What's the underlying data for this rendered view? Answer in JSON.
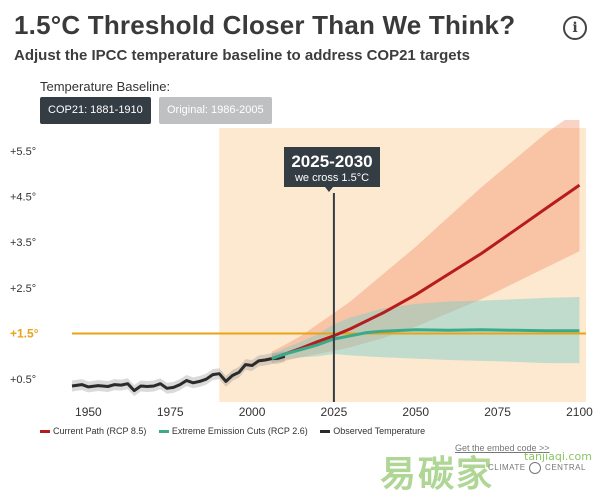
{
  "header": {
    "title": "1.5°C Threshold Closer Than We Think?",
    "subtitle": "Adjust the IPCC temperature baseline to address COP21 targets",
    "info_icon": "info-icon"
  },
  "baseline": {
    "label": "Temperature Baseline:",
    "options": [
      "COP21: 1881-1910",
      "Original: 1986-2005"
    ],
    "selected": "COP21: 1881-1910"
  },
  "annotation": {
    "headline": "2025-2030",
    "sub": "we cross 1.5°C"
  },
  "legend": {
    "items": [
      {
        "label": "Current Path (RCP 8.5)",
        "color": "#b71c1c"
      },
      {
        "label": "Extreme Emission Cuts (RCP 2.6)",
        "color": "#3aaa8a"
      },
      {
        "label": "Observed Temperature",
        "color": "#2b2b2b"
      }
    ]
  },
  "footer": {
    "embed": "Get the embed code >>",
    "brand_left": "CLIMATE",
    "brand_right": "CENTRAL"
  },
  "watermark": {
    "text": "易碳家",
    "url": "tanjiaqi.com"
  },
  "colors": {
    "threshold": "#e8a317",
    "rcp85": "#b71c1c",
    "rcp26": "#3aaa8a",
    "observed": "#2b2b2b",
    "band_bg": "#fde9cf"
  },
  "chart_data": {
    "type": "line",
    "xlim": [
      1945,
      2102
    ],
    "ylim": [
      0,
      6
    ],
    "x_ticks": [
      1950,
      1975,
      2000,
      2025,
      2050,
      2075,
      2100
    ],
    "y_ticks": [
      {
        "value": 0.5,
        "label": "+0.5°"
      },
      {
        "value": 1.5,
        "label": "+1.5°"
      },
      {
        "value": 2.5,
        "label": "+2.5°"
      },
      {
        "value": 3.5,
        "label": "+3.5°"
      },
      {
        "value": 4.5,
        "label": "+4.5°"
      },
      {
        "value": 5.5,
        "label": "+5.5°"
      }
    ],
    "threshold": 1.5,
    "marker_x": 2025,
    "series": [
      {
        "name": "Observed Temperature",
        "x": [
          1945,
          1948,
          1950,
          1953,
          1956,
          1958,
          1960,
          1962,
          1964,
          1966,
          1968,
          1970,
          1972,
          1974,
          1976,
          1978,
          1980,
          1982,
          1984,
          1986,
          1988,
          1990,
          1992,
          1994,
          1996,
          1998,
          2000,
          2002,
          2004,
          2006,
          2008,
          2010
        ],
        "y": [
          0.35,
          0.38,
          0.33,
          0.36,
          0.34,
          0.38,
          0.37,
          0.4,
          0.25,
          0.35,
          0.34,
          0.35,
          0.4,
          0.3,
          0.32,
          0.38,
          0.47,
          0.42,
          0.45,
          0.5,
          0.6,
          0.62,
          0.45,
          0.58,
          0.65,
          0.82,
          0.8,
          0.9,
          0.92,
          0.95,
          0.96,
          1.0
        ]
      },
      {
        "name": "Current Path (RCP 8.5)",
        "x": [
          2006,
          2010,
          2015,
          2020,
          2025,
          2030,
          2040,
          2050,
          2060,
          2070,
          2080,
          2090,
          2100
        ],
        "y": [
          0.95,
          1.05,
          1.18,
          1.32,
          1.45,
          1.6,
          1.95,
          2.35,
          2.8,
          3.25,
          3.75,
          4.25,
          4.75
        ],
        "band_low": [
          0.85,
          0.9,
          0.98,
          1.05,
          1.12,
          1.2,
          1.4,
          1.65,
          1.95,
          2.25,
          2.6,
          2.95,
          3.3
        ],
        "band_high": [
          1.1,
          1.25,
          1.45,
          1.7,
          1.95,
          2.2,
          2.8,
          3.4,
          4.05,
          4.7,
          5.3,
          5.9,
          6.4
        ]
      },
      {
        "name": "Extreme Emission Cuts (RCP 2.6)",
        "x": [
          2006,
          2010,
          2015,
          2020,
          2025,
          2030,
          2035,
          2040,
          2050,
          2060,
          2070,
          2080,
          2090,
          2100
        ],
        "y": [
          0.95,
          1.05,
          1.15,
          1.25,
          1.38,
          1.45,
          1.52,
          1.55,
          1.58,
          1.57,
          1.58,
          1.57,
          1.56,
          1.56
        ],
        "band_low": [
          0.88,
          0.93,
          0.98,
          1.0,
          1.05,
          1.02,
          1.0,
          0.98,
          0.95,
          0.92,
          0.9,
          0.88,
          0.85,
          0.85
        ],
        "band_high": [
          1.05,
          1.18,
          1.32,
          1.48,
          1.7,
          1.85,
          1.95,
          2.05,
          2.15,
          2.2,
          2.22,
          2.25,
          2.28,
          2.3
        ]
      }
    ]
  }
}
